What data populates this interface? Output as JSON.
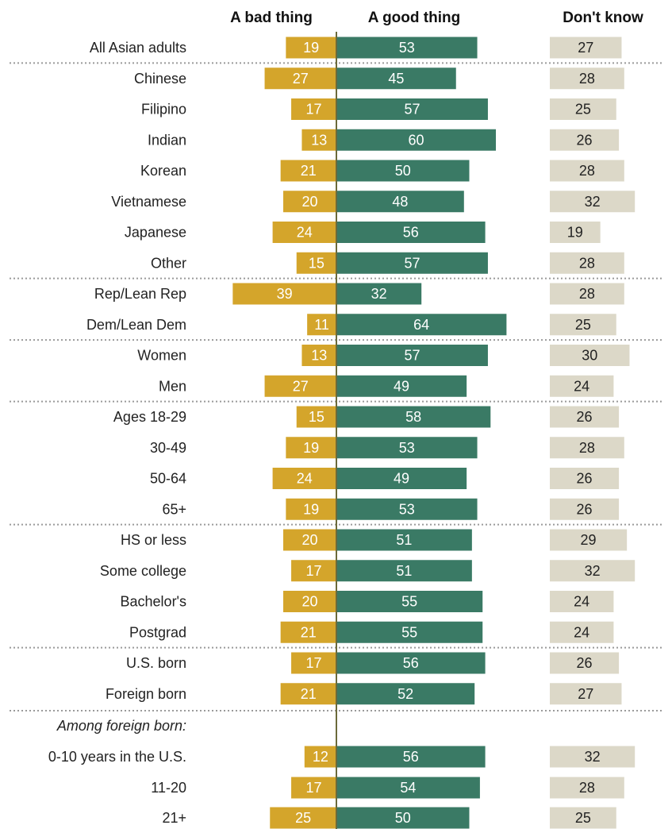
{
  "colors": {
    "bad": "#d4a52b",
    "good": "#3a7a65",
    "dont_know": "#dcd8c8",
    "axis": "#6b6a3a",
    "separator": "#9a9a9a",
    "text": "#222222"
  },
  "headers": {
    "bad": "A bad thing",
    "good": "A good thing",
    "dont_know": "Don't know"
  },
  "chart_data": {
    "type": "bar",
    "orientation": "horizontal-diverging",
    "series": [
      {
        "name": "A bad thing",
        "values": [
          19,
          27,
          17,
          13,
          21,
          20,
          24,
          15,
          39,
          11,
          13,
          27,
          15,
          19,
          24,
          19,
          20,
          17,
          20,
          21,
          17,
          21,
          12,
          17,
          25
        ]
      },
      {
        "name": "A good thing",
        "values": [
          53,
          45,
          57,
          60,
          50,
          48,
          56,
          57,
          32,
          64,
          57,
          49,
          58,
          53,
          49,
          53,
          51,
          51,
          55,
          55,
          56,
          52,
          56,
          54,
          50
        ]
      },
      {
        "name": "Don't know",
        "values": [
          27,
          28,
          25,
          26,
          28,
          32,
          19,
          28,
          28,
          25,
          30,
          24,
          26,
          28,
          26,
          26,
          29,
          32,
          24,
          24,
          26,
          27,
          32,
          28,
          25
        ]
      }
    ],
    "categories": [
      "All Asian adults",
      "Chinese",
      "Filipino",
      "Indian",
      "Korean",
      "Vietnamese",
      "Japanese",
      "Other",
      "Rep/Lean Rep",
      "Dem/Lean Dem",
      "Women",
      "Men",
      "Ages 18-29",
      "30-49",
      "50-64",
      "65+",
      "HS or less",
      "Some college",
      "Bachelor's",
      "Postgrad",
      "U.S. born",
      "Foreign born",
      "0-10 years in the U.S.",
      "11-20",
      "21+"
    ],
    "group_note": {
      "text": "Among foreign born:",
      "before_index": 22
    },
    "separators_after": [
      0,
      7,
      9,
      11,
      15,
      19,
      21
    ]
  }
}
